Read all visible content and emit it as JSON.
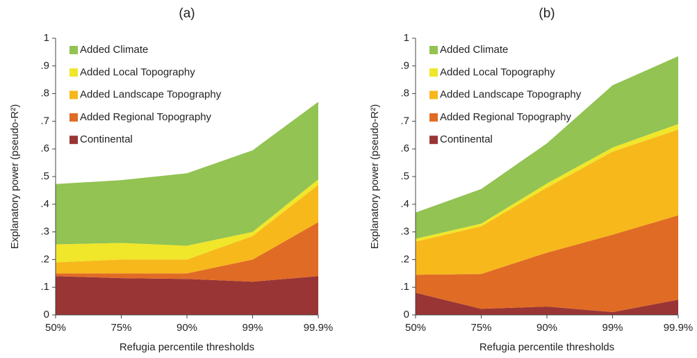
{
  "chart_data": [
    {
      "type": "area",
      "stacked": true,
      "title": "(a)",
      "x_label": "Refugia percentile thresholds",
      "y_label": "Explanatory power (pseudo-R²)",
      "categories": [
        "50%",
        "75%",
        "90%",
        "99%",
        "99.9%"
      ],
      "ylim": [
        0,
        1
      ],
      "yticks": [
        0,
        {
          "value": 0.1,
          "label": ".1"
        },
        {
          "value": 0.2,
          "label": ".2"
        },
        {
          "value": 0.3,
          "label": ".3"
        },
        {
          "value": 0.4,
          "label": ".4"
        },
        {
          "value": 0.5,
          "label": ".5"
        },
        {
          "value": 0.6,
          "label": ".6"
        },
        {
          "value": 0.7,
          "label": ".7"
        },
        {
          "value": 0.8,
          "label": ".8"
        },
        {
          "value": 0.9,
          "label": ".9"
        },
        1
      ],
      "series": [
        {
          "name": "Continental",
          "color": "#993535",
          "values": [
            0.14,
            0.133,
            0.13,
            0.12,
            0.14
          ]
        },
        {
          "name": "Added Regional Topography",
          "color": "#e06b25",
          "values": [
            0.01,
            0.017,
            0.02,
            0.08,
            0.195
          ]
        },
        {
          "name": "Added Landscape Topography",
          "color": "#f7b81c",
          "values": [
            0.04,
            0.05,
            0.05,
            0.085,
            0.135
          ]
        },
        {
          "name": "Added Local Topography",
          "color": "#f0e62a",
          "values": [
            0.065,
            0.06,
            0.05,
            0.015,
            0.02
          ]
        },
        {
          "name": "Added Climate",
          "color": "#92c353",
          "values": [
            0.218,
            0.227,
            0.262,
            0.295,
            0.28
          ]
        }
      ]
    },
    {
      "type": "area",
      "stacked": true,
      "title": "(b)",
      "x_label": "Refugia percentile thresholds",
      "y_label": "Explanatory power (pseudo-R²)",
      "categories": [
        "50%",
        "75%",
        "90%",
        "99%",
        "99.9%"
      ],
      "ylim": [
        0,
        1
      ],
      "yticks": [
        0,
        {
          "value": 0.1,
          "label": ".1"
        },
        {
          "value": 0.2,
          "label": ".2"
        },
        {
          "value": 0.3,
          "label": ".3"
        },
        {
          "value": 0.4,
          "label": ".4"
        },
        {
          "value": 0.5,
          "label": ".5"
        },
        {
          "value": 0.6,
          "label": ".6"
        },
        {
          "value": 0.7,
          "label": ".7"
        },
        {
          "value": 0.8,
          "label": ".8"
        },
        {
          "value": 0.9,
          "label": ".9"
        },
        1
      ],
      "series": [
        {
          "name": "Continental",
          "color": "#993535",
          "values": [
            0.08,
            0.022,
            0.03,
            0.01,
            0.055
          ]
        },
        {
          "name": "Added Regional Topography",
          "color": "#e06b25",
          "values": [
            0.065,
            0.126,
            0.195,
            0.28,
            0.305
          ]
        },
        {
          "name": "Added Landscape Topography",
          "color": "#f7b81c",
          "values": [
            0.12,
            0.172,
            0.235,
            0.3,
            0.31
          ]
        },
        {
          "name": "Added Local Topography",
          "color": "#f0e62a",
          "values": [
            0.01,
            0.01,
            0.015,
            0.015,
            0.02
          ]
        },
        {
          "name": "Added Climate",
          "color": "#92c353",
          "values": [
            0.095,
            0.125,
            0.145,
            0.225,
            0.245
          ]
        }
      ]
    }
  ]
}
